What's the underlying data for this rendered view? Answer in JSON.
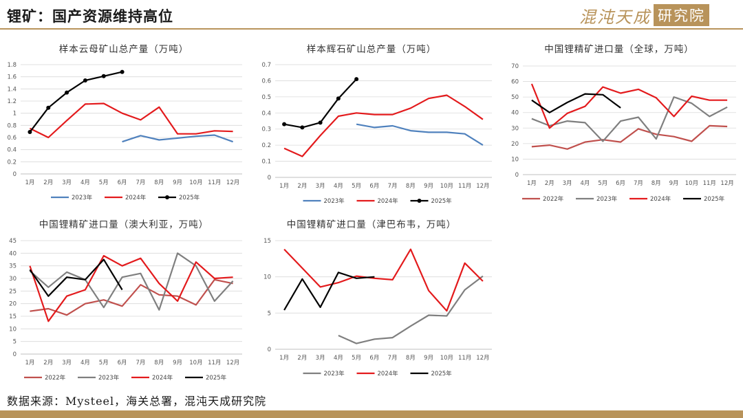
{
  "header": {
    "title": "锂矿：国产资源维持高位"
  },
  "logo": {
    "text": "混沌天成",
    "box_text": "研究院"
  },
  "source": "数据来源：Mysteel，海关总署，混沌天成研究院",
  "colors": {
    "2022": "#c0504d",
    "2023": "#4f81bd",
    "2023_gray": "#7f7f7f",
    "2024": "#e31a1c",
    "2025": "#000000",
    "grid": "#d9d9d9",
    "accent": "#b8935a"
  },
  "chart_data": [
    {
      "id": "c1",
      "type": "line",
      "title": "样本云母矿山总产量（万吨）",
      "categories": [
        "1月",
        "2月",
        "3月",
        "4月",
        "5月",
        "6月",
        "7月",
        "8月",
        "9月",
        "10月",
        "11月",
        "12月"
      ],
      "ylim": [
        0,
        1.8
      ],
      "yticks": [
        0,
        0.2,
        0.4,
        0.6,
        0.8,
        1,
        1.2,
        1.4,
        1.6,
        1.8
      ],
      "series": [
        {
          "name": "2023年",
          "color": "#4f81bd",
          "marker": false,
          "values": [
            null,
            null,
            null,
            null,
            null,
            0.53,
            0.63,
            0.56,
            0.59,
            0.62,
            0.64,
            0.53
          ]
        },
        {
          "name": "2024年",
          "color": "#e31a1c",
          "marker": false,
          "values": [
            0.75,
            0.6,
            0.88,
            1.15,
            1.16,
            1.0,
            0.89,
            1.1,
            0.66,
            0.66,
            0.71,
            0.7
          ]
        },
        {
          "name": "2025年",
          "color": "#000000",
          "marker": true,
          "values": [
            0.69,
            1.09,
            1.34,
            1.54,
            1.61,
            1.68,
            null,
            null,
            null,
            null,
            null,
            null
          ]
        }
      ]
    },
    {
      "id": "c2",
      "type": "line",
      "title": "样本辉石矿山总产量（万吨）",
      "categories": [
        "1月",
        "2月",
        "3月",
        "4月",
        "5月",
        "6月",
        "7月",
        "8月",
        "9月",
        "10月",
        "11月",
        "12月"
      ],
      "ylim": [
        0,
        0.7
      ],
      "yticks": [
        0,
        0.1,
        0.2,
        0.3,
        0.4,
        0.5,
        0.6,
        0.7
      ],
      "series": [
        {
          "name": "2023年",
          "color": "#4f81bd",
          "marker": false,
          "values": [
            null,
            null,
            null,
            null,
            0.33,
            0.31,
            0.32,
            0.29,
            0.28,
            0.28,
            0.27,
            0.2
          ]
        },
        {
          "name": "2024年",
          "color": "#e31a1c",
          "marker": false,
          "values": [
            0.18,
            0.13,
            0.26,
            0.38,
            0.4,
            0.39,
            0.39,
            0.43,
            0.49,
            0.51,
            0.44,
            0.36
          ]
        },
        {
          "name": "2025年",
          "color": "#000000",
          "marker": true,
          "values": [
            0.33,
            0.31,
            0.34,
            0.49,
            0.61,
            null,
            null,
            null,
            null,
            null,
            null,
            null
          ]
        }
      ]
    },
    {
      "id": "c3",
      "type": "line",
      "title": "中国锂精矿进口量（全球，万吨）",
      "categories": [
        "1月",
        "2月",
        "3月",
        "4月",
        "5月",
        "6月",
        "7月",
        "8月",
        "9月",
        "10月",
        "11月",
        "12月"
      ],
      "ylim": [
        0,
        70
      ],
      "yticks": [
        0,
        10,
        20,
        30,
        40,
        50,
        60,
        70
      ],
      "series": [
        {
          "name": "2022年",
          "color": "#c0504d",
          "marker": false,
          "values": [
            18,
            19,
            16.5,
            21,
            22.5,
            21,
            29.5,
            26,
            24.5,
            21.5,
            31.5,
            31
          ]
        },
        {
          "name": "2023年",
          "color": "#7f7f7f",
          "marker": false,
          "values": [
            36,
            31.5,
            34.5,
            33.5,
            21.5,
            34.5,
            37,
            23,
            50,
            46,
            37.5,
            43.5
          ]
        },
        {
          "name": "2024年",
          "color": "#e31a1c",
          "marker": false,
          "values": [
            58.5,
            30,
            39.5,
            44,
            56.5,
            52.5,
            55,
            49.5,
            37.5,
            50.5,
            48,
            48
          ]
        },
        {
          "name": "2025年",
          "color": "#000000",
          "marker": false,
          "values": [
            48,
            40,
            46.5,
            52,
            51.5,
            43,
            null,
            null,
            null,
            null,
            null,
            null
          ]
        }
      ]
    },
    {
      "id": "c4",
      "type": "line",
      "title": "中国锂精矿进口量（澳大利亚，万吨）",
      "categories": [
        "1月",
        "2月",
        "3月",
        "4月",
        "5月",
        "6月",
        "7月",
        "8月",
        "9月",
        "10月",
        "11月",
        "12月"
      ],
      "ylim": [
        0,
        45
      ],
      "yticks": [
        0,
        5,
        10,
        15,
        20,
        25,
        30,
        35,
        40,
        45
      ],
      "series": [
        {
          "name": "2022年",
          "color": "#c0504d",
          "marker": false,
          "values": [
            17,
            18,
            15.5,
            20,
            21.5,
            19,
            27.5,
            23.5,
            23,
            19.5,
            29.5,
            28
          ]
        },
        {
          "name": "2023年",
          "color": "#7f7f7f",
          "marker": false,
          "values": [
            33,
            26.5,
            32.5,
            29.5,
            18.5,
            30.5,
            32,
            17.5,
            40,
            35,
            21,
            29
          ]
        },
        {
          "name": "2024年",
          "color": "#e31a1c",
          "marker": false,
          "values": [
            35,
            13,
            23,
            25.5,
            39,
            35,
            38,
            28,
            21,
            36.5,
            30,
            30.5
          ]
        },
        {
          "name": "2025年",
          "color": "#000000",
          "marker": false,
          "values": [
            33.5,
            23,
            30.5,
            29.5,
            37.5,
            25.5,
            null,
            null,
            null,
            null,
            null,
            null
          ]
        }
      ]
    },
    {
      "id": "c5",
      "type": "line",
      "title": "中国锂精矿进口量（津巴布韦，万吨）",
      "categories": [
        "1月",
        "2月",
        "3月",
        "4月",
        "5月",
        "6月",
        "7月",
        "8月",
        "9月",
        "10月",
        "11月",
        "12月"
      ],
      "ylim": [
        0,
        15
      ],
      "yticks": [
        0,
        5,
        10,
        15
      ],
      "series": [
        {
          "name": "2023年",
          "color": "#7f7f7f",
          "marker": false,
          "values": [
            null,
            null,
            null,
            1.9,
            0.8,
            1.4,
            1.6,
            3.2,
            4.7,
            4.6,
            8.2,
            10.1
          ]
        },
        {
          "name": "2024年",
          "color": "#e31a1c",
          "marker": false,
          "values": [
            13.8,
            11.2,
            8.6,
            9.2,
            10.1,
            9.8,
            9.6,
            13.8,
            8.1,
            5.3,
            11.9,
            9.4
          ]
        },
        {
          "name": "2025年",
          "color": "#000000",
          "marker": false,
          "values": [
            5.4,
            9.7,
            5.8,
            10.6,
            9.8,
            10.0,
            null,
            null,
            null,
            null,
            null,
            null
          ]
        }
      ]
    }
  ]
}
